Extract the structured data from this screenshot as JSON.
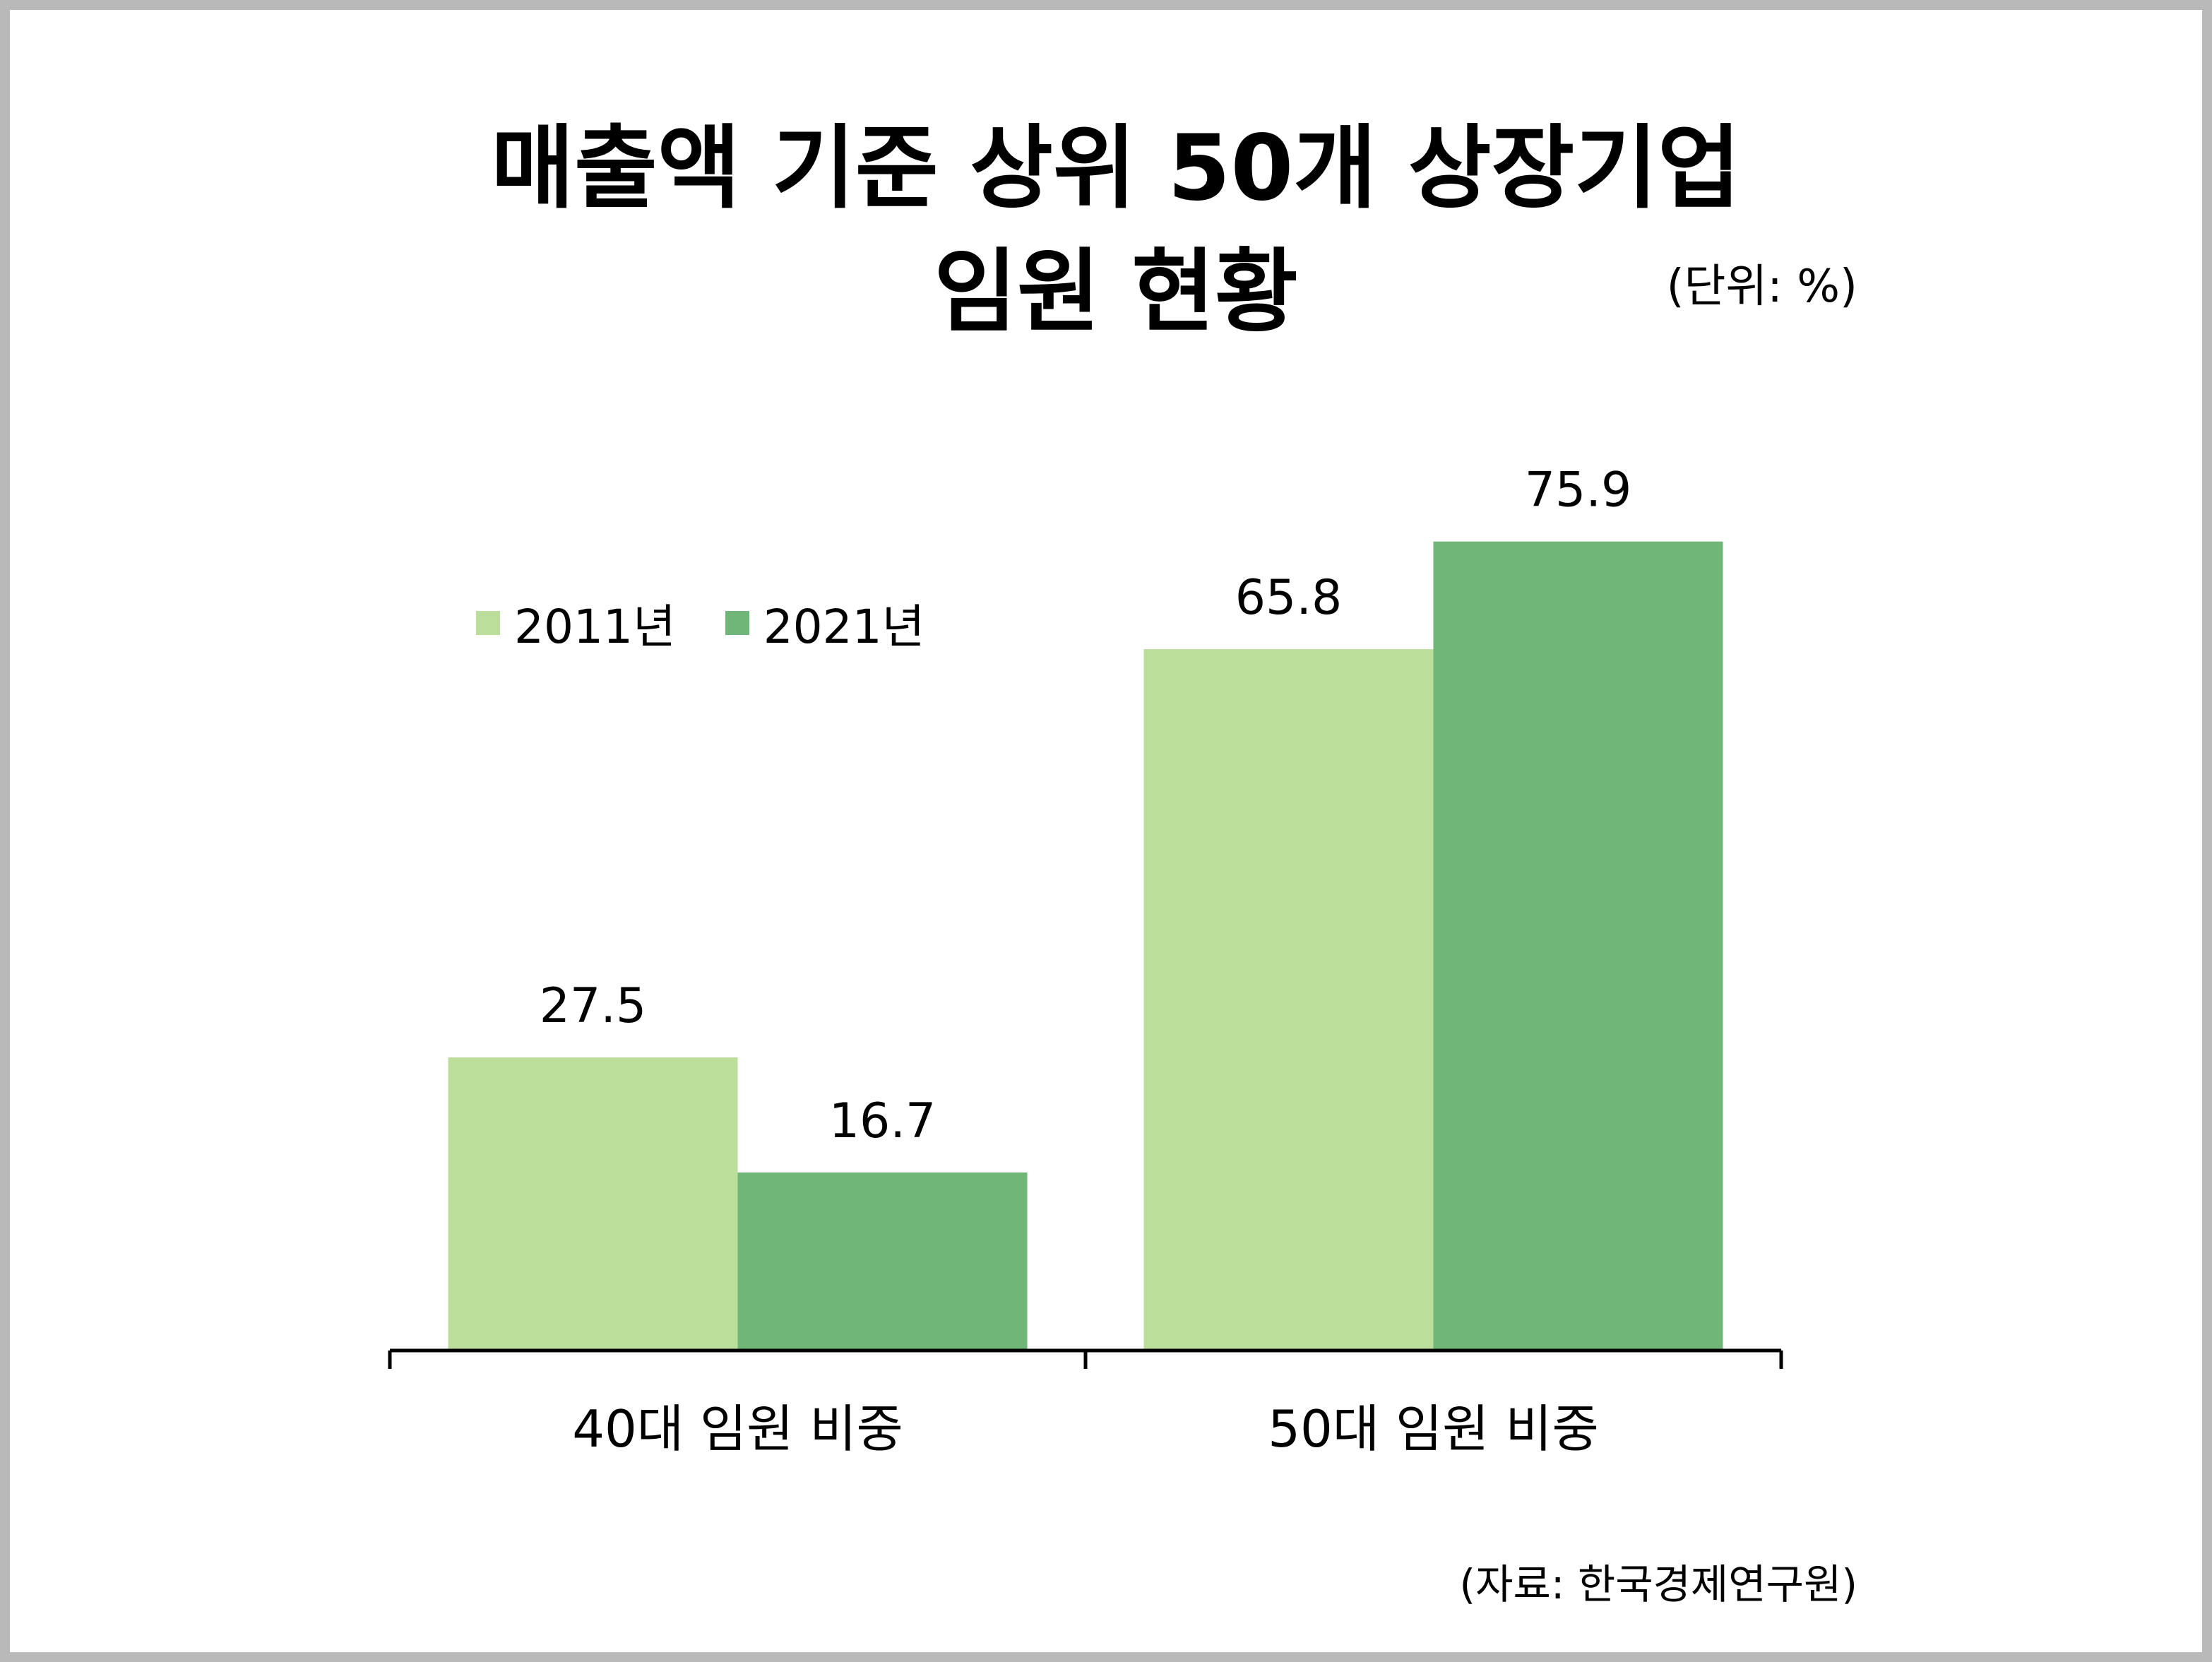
{
  "chart_data": {
    "type": "bar",
    "title": [
      "매출액 기준 상위 50개 상장기업",
      "임원 현황"
    ],
    "unit_label": "(단위: %)",
    "source_label": "(자료: 한국경제연구원)",
    "categories": [
      "40대 임원 비중",
      "50대 임원 비중"
    ],
    "series": [
      {
        "name": "2011년",
        "values": [
          27.5,
          65.8
        ],
        "color": "#bbdf9a"
      },
      {
        "name": "2021년",
        "values": [
          16.7,
          75.9
        ],
        "color": "#71b679"
      }
    ],
    "ylim": [
      0,
      100
    ],
    "grid": false,
    "legend_position": "top-left"
  }
}
